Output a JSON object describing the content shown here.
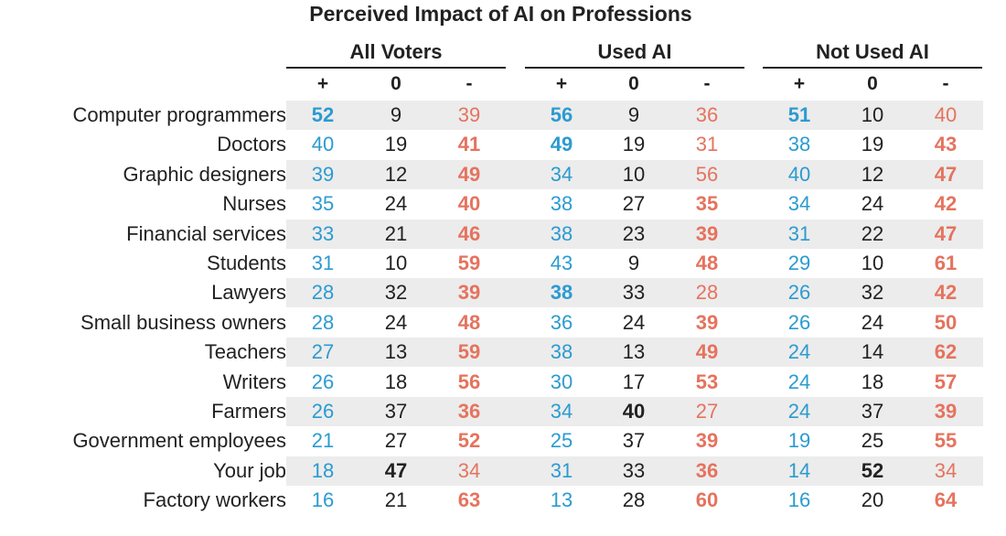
{
  "chart_data": {
    "type": "table",
    "title": "Perceived Impact of AI on Professions",
    "groups": [
      "All Voters",
      "Used AI",
      "Not Used AI"
    ],
    "columns": [
      "+",
      "0",
      "-"
    ],
    "colors": {
      "positive": "#2b9bd1",
      "neutral": "#222222",
      "negative": "#e5735e",
      "band": "#ececec"
    },
    "rows": [
      {
        "label": "Computer programmers",
        "values": [
          [
            52,
            9,
            39
          ],
          [
            56,
            9,
            36
          ],
          [
            51,
            10,
            40
          ]
        ],
        "bold": [
          [
            1,
            0,
            0
          ],
          [
            1,
            0,
            0
          ],
          [
            1,
            0,
            0
          ]
        ]
      },
      {
        "label": "Doctors",
        "values": [
          [
            40,
            19,
            41
          ],
          [
            49,
            19,
            31
          ],
          [
            38,
            19,
            43
          ]
        ],
        "bold": [
          [
            0,
            0,
            1
          ],
          [
            1,
            0,
            0
          ],
          [
            0,
            0,
            1
          ]
        ]
      },
      {
        "label": "Graphic designers",
        "values": [
          [
            39,
            12,
            49
          ],
          [
            34,
            10,
            56
          ],
          [
            40,
            12,
            47
          ]
        ],
        "bold": [
          [
            0,
            0,
            1
          ],
          [
            0,
            0,
            0
          ],
          [
            0,
            0,
            1
          ]
        ]
      },
      {
        "label": "Nurses",
        "values": [
          [
            35,
            24,
            40
          ],
          [
            38,
            27,
            35
          ],
          [
            34,
            24,
            42
          ]
        ],
        "bold": [
          [
            0,
            0,
            1
          ],
          [
            0,
            0,
            1
          ],
          [
            0,
            0,
            1
          ]
        ]
      },
      {
        "label": "Financial services",
        "values": [
          [
            33,
            21,
            46
          ],
          [
            38,
            23,
            39
          ],
          [
            31,
            22,
            47
          ]
        ],
        "bold": [
          [
            0,
            0,
            1
          ],
          [
            0,
            0,
            1
          ],
          [
            0,
            0,
            1
          ]
        ]
      },
      {
        "label": "Students",
        "values": [
          [
            31,
            10,
            59
          ],
          [
            43,
            9,
            48
          ],
          [
            29,
            10,
            61
          ]
        ],
        "bold": [
          [
            0,
            0,
            1
          ],
          [
            0,
            0,
            1
          ],
          [
            0,
            0,
            1
          ]
        ]
      },
      {
        "label": "Lawyers",
        "values": [
          [
            28,
            32,
            39
          ],
          [
            38,
            33,
            28
          ],
          [
            26,
            32,
            42
          ]
        ],
        "bold": [
          [
            0,
            0,
            1
          ],
          [
            1,
            0,
            0
          ],
          [
            0,
            0,
            1
          ]
        ]
      },
      {
        "label": "Small business owners",
        "values": [
          [
            28,
            24,
            48
          ],
          [
            36,
            24,
            39
          ],
          [
            26,
            24,
            50
          ]
        ],
        "bold": [
          [
            0,
            0,
            1
          ],
          [
            0,
            0,
            1
          ],
          [
            0,
            0,
            1
          ]
        ]
      },
      {
        "label": "Teachers",
        "values": [
          [
            27,
            13,
            59
          ],
          [
            38,
            13,
            49
          ],
          [
            24,
            14,
            62
          ]
        ],
        "bold": [
          [
            0,
            0,
            1
          ],
          [
            0,
            0,
            1
          ],
          [
            0,
            0,
            1
          ]
        ]
      },
      {
        "label": "Writers",
        "values": [
          [
            26,
            18,
            56
          ],
          [
            30,
            17,
            53
          ],
          [
            24,
            18,
            57
          ]
        ],
        "bold": [
          [
            0,
            0,
            1
          ],
          [
            0,
            0,
            1
          ],
          [
            0,
            0,
            1
          ]
        ]
      },
      {
        "label": "Farmers",
        "values": [
          [
            26,
            37,
            36
          ],
          [
            34,
            40,
            27
          ],
          [
            24,
            37,
            39
          ]
        ],
        "bold": [
          [
            0,
            0,
            1
          ],
          [
            0,
            1,
            0
          ],
          [
            0,
            0,
            1
          ]
        ]
      },
      {
        "label": "Government employees",
        "values": [
          [
            21,
            27,
            52
          ],
          [
            25,
            37,
            39
          ],
          [
            19,
            25,
            55
          ]
        ],
        "bold": [
          [
            0,
            0,
            1
          ],
          [
            0,
            0,
            1
          ],
          [
            0,
            0,
            1
          ]
        ]
      },
      {
        "label": "Your job",
        "values": [
          [
            18,
            47,
            34
          ],
          [
            31,
            33,
            36
          ],
          [
            14,
            52,
            34
          ]
        ],
        "bold": [
          [
            0,
            1,
            0
          ],
          [
            0,
            0,
            1
          ],
          [
            0,
            1,
            0
          ]
        ]
      },
      {
        "label": "Factory workers",
        "values": [
          [
            16,
            21,
            63
          ],
          [
            13,
            28,
            60
          ],
          [
            16,
            20,
            64
          ]
        ],
        "bold": [
          [
            0,
            0,
            1
          ],
          [
            0,
            0,
            1
          ],
          [
            0,
            0,
            1
          ]
        ]
      }
    ]
  }
}
